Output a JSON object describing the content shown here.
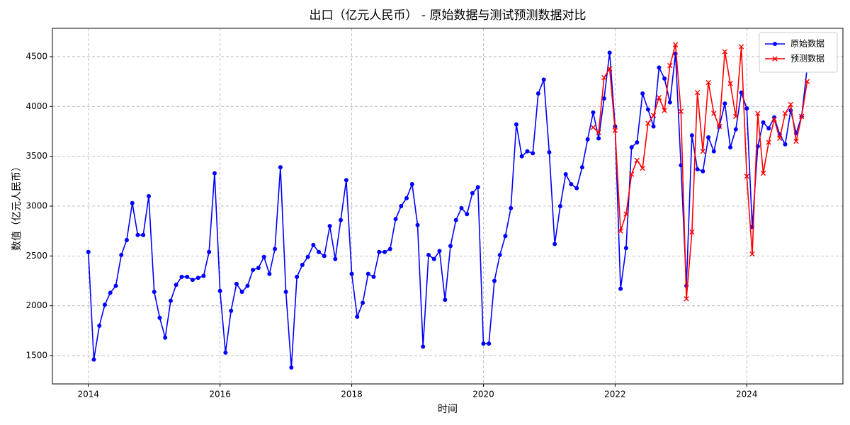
{
  "chart_data": {
    "type": "line",
    "title": "出口（亿元人民币） - 原始数据与测试预测数据对比",
    "xlabel": "时间",
    "ylabel": "数值（亿元人民币）",
    "x": [
      2014,
      2014.083,
      2014.167,
      2014.25,
      2014.333,
      2014.417,
      2014.5,
      2014.583,
      2014.667,
      2014.75,
      2014.833,
      2014.917,
      2015,
      2015.083,
      2015.167,
      2015.25,
      2015.333,
      2015.417,
      2015.5,
      2015.583,
      2015.667,
      2015.75,
      2015.833,
      2015.917,
      2016,
      2016.083,
      2016.167,
      2016.25,
      2016.333,
      2016.417,
      2016.5,
      2016.583,
      2016.667,
      2016.75,
      2016.833,
      2016.917,
      2017,
      2017.083,
      2017.167,
      2017.25,
      2017.333,
      2017.417,
      2017.5,
      2017.583,
      2017.667,
      2017.75,
      2017.833,
      2017.917,
      2018,
      2018.083,
      2018.167,
      2018.25,
      2018.333,
      2018.417,
      2018.5,
      2018.583,
      2018.667,
      2018.75,
      2018.833,
      2018.917,
      2019,
      2019.083,
      2019.167,
      2019.25,
      2019.333,
      2019.417,
      2019.5,
      2019.583,
      2019.667,
      2019.75,
      2019.833,
      2019.917,
      2020,
      2020.083,
      2020.167,
      2020.25,
      2020.333,
      2020.417,
      2020.5,
      2020.583,
      2020.667,
      2020.75,
      2020.833,
      2020.917,
      2021,
      2021.083,
      2021.167,
      2021.25,
      2021.333,
      2021.417,
      2021.5,
      2021.583,
      2021.667,
      2021.75,
      2021.833,
      2021.917,
      2022,
      2022.083,
      2022.167,
      2022.25,
      2022.333,
      2022.417,
      2022.5,
      2022.583,
      2022.667,
      2022.75,
      2022.833,
      2022.917,
      2023,
      2023.083,
      2023.167,
      2023.25,
      2023.333,
      2023.417,
      2023.5,
      2023.583,
      2023.667,
      2023.75,
      2023.833,
      2023.917,
      2024,
      2024.083,
      2024.167,
      2024.25,
      2024.333,
      2024.417,
      2024.5,
      2024.583,
      2024.667,
      2024.75,
      2024.833,
      2024.917
    ],
    "series": [
      {
        "name": "原始数据",
        "color": "#0000ff",
        "marker": "circle",
        "values": [
          2540,
          1460,
          1800,
          2010,
          2130,
          2200,
          2510,
          2660,
          3030,
          2710,
          2710,
          3100,
          2140,
          1880,
          1680,
          2050,
          2210,
          2290,
          2290,
          2260,
          2280,
          2300,
          2540,
          3330,
          2150,
          1530,
          1950,
          2220,
          2140,
          2200,
          2360,
          2380,
          2490,
          2320,
          2570,
          3390,
          2140,
          1380,
          2290,
          2410,
          2490,
          2610,
          2540,
          2500,
          2800,
          2470,
          2860,
          3260,
          2320,
          1890,
          2030,
          2320,
          2290,
          2540,
          2540,
          2570,
          2870,
          3000,
          3080,
          3220,
          2810,
          1590,
          2510,
          2470,
          2550,
          2060,
          2600,
          2860,
          2980,
          2920,
          3130,
          3190,
          1620,
          1620,
          2250,
          2510,
          2700,
          2980,
          3820,
          3500,
          3550,
          3530,
          4130,
          4270,
          3540,
          2620,
          3000,
          3320,
          3220,
          3180,
          3390,
          3670,
          3940,
          3680,
          4080,
          4540,
          3800,
          2170,
          2580,
          3590,
          3640,
          4130,
          3970,
          3800,
          4390,
          4280,
          4040,
          4530,
          3410,
          2200,
          3710,
          3370,
          3350,
          3690,
          3550,
          3800,
          4030,
          3590,
          3770,
          4140,
          3980,
          2790,
          3600,
          3840,
          3780,
          3890,
          3720,
          3620,
          3960,
          3730,
          3900,
          4390
        ]
      },
      {
        "name": "预测数据",
        "color": "#ff0000",
        "marker": "x",
        "values": [
          null,
          null,
          null,
          null,
          null,
          null,
          null,
          null,
          null,
          null,
          null,
          null,
          null,
          null,
          null,
          null,
          null,
          null,
          null,
          null,
          null,
          null,
          null,
          null,
          null,
          null,
          null,
          null,
          null,
          null,
          null,
          null,
          null,
          null,
          null,
          null,
          null,
          null,
          null,
          null,
          null,
          null,
          null,
          null,
          null,
          null,
          null,
          null,
          null,
          null,
          null,
          null,
          null,
          null,
          null,
          null,
          null,
          null,
          null,
          null,
          null,
          null,
          null,
          null,
          null,
          null,
          null,
          null,
          null,
          null,
          null,
          null,
          null,
          null,
          null,
          null,
          null,
          null,
          null,
          null,
          null,
          null,
          null,
          null,
          null,
          null,
          null,
          null,
          null,
          null,
          null,
          null,
          3790,
          3740,
          4290,
          4380,
          3760,
          2750,
          2920,
          3320,
          3460,
          3380,
          3830,
          3910,
          4090,
          3960,
          4410,
          4620,
          3950,
          2070,
          2740,
          4140,
          3550,
          4240,
          3930,
          3800,
          4550,
          4230,
          3900,
          4600,
          3300,
          2520,
          3930,
          3330,
          3640,
          3870,
          3680,
          3930,
          4020,
          3650,
          3900,
          4250
        ]
      }
    ],
    "xlim": [
      2013.454,
      2025.46
    ],
    "xticks": [
      2014,
      2016,
      2018,
      2020,
      2022,
      2024
    ],
    "ylim": [
      1216,
      4784
    ],
    "yticks": [
      1500,
      2000,
      2500,
      3000,
      3500,
      4000,
      4500
    ],
    "grid": true,
    "legend": "upper right"
  }
}
